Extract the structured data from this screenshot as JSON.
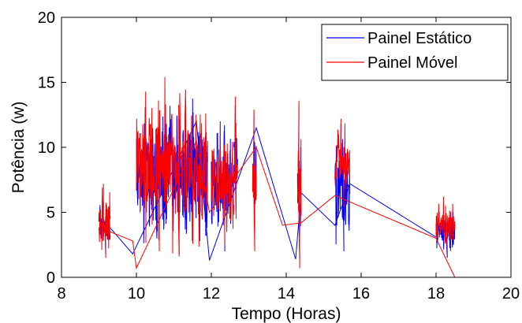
{
  "chart_data": {
    "type": "line",
    "title": "",
    "xlabel": "Tempo (Horas)",
    "ylabel": "Potência (w)",
    "xlim": [
      8,
      20
    ],
    "ylim": [
      0,
      20
    ],
    "xticks": [
      "8",
      "10",
      "12",
      "14",
      "16",
      "18",
      "20"
    ],
    "yticks": [
      "0",
      "5",
      "10",
      "15",
      "20"
    ],
    "grid": false,
    "legend_position": "top-right",
    "series": [
      {
        "name": "Painel Estático",
        "color": "#0000ff",
        "clusters": [
          {
            "x0": 9.0,
            "x1": 9.3,
            "min": 1.8,
            "max": 5.8
          },
          {
            "x0": 10.0,
            "x1": 11.9,
            "min": 1.8,
            "max": 14.5
          },
          {
            "x0": 12.0,
            "x1": 12.6,
            "min": 2.0,
            "max": 12.0
          },
          {
            "x0": 12.6,
            "x1": 12.7,
            "min": 5.0,
            "max": 13.2
          },
          {
            "x0": 13.1,
            "x1": 13.2,
            "min": 4.0,
            "max": 12.5
          },
          {
            "x0": 14.3,
            "x1": 14.4,
            "min": 1.5,
            "max": 13.2
          },
          {
            "x0": 15.3,
            "x1": 15.7,
            "min": 2.0,
            "max": 11.8
          },
          {
            "x0": 18.0,
            "x1": 18.5,
            "min": 1.5,
            "max": 5.8
          }
        ],
        "connectors": [
          [
            9.3,
            3.8
          ],
          [
            9.9,
            1.8
          ],
          [
            11.6,
            12.0
          ],
          [
            11.95,
            1.3
          ],
          [
            13.2,
            11.5
          ],
          [
            14.25,
            1.4
          ],
          [
            14.4,
            6.5
          ],
          [
            15.3,
            4.0
          ],
          [
            15.7,
            7.2
          ],
          [
            18.0,
            3.1
          ]
        ]
      },
      {
        "name": "Painel Móvel",
        "color": "#ff0000",
        "clusters": [
          {
            "x0": 9.0,
            "x1": 9.3,
            "min": 1.5,
            "max": 7.2
          },
          {
            "x0": 10.0,
            "x1": 11.9,
            "min": 1.6,
            "max": 15.4
          },
          {
            "x0": 12.0,
            "x1": 12.6,
            "min": 2.5,
            "max": 12.0
          },
          {
            "x0": 12.6,
            "x1": 12.7,
            "min": 4.5,
            "max": 13.9
          },
          {
            "x0": 13.1,
            "x1": 13.2,
            "min": 2.0,
            "max": 12.9
          },
          {
            "x0": 14.3,
            "x1": 14.4,
            "min": 0.7,
            "max": 13.6
          },
          {
            "x0": 15.3,
            "x1": 15.7,
            "min": 5.5,
            "max": 12.2
          },
          {
            "x0": 18.0,
            "x1": 18.5,
            "min": 1.8,
            "max": 6.2
          }
        ],
        "connectors": [
          [
            9.3,
            3.5
          ],
          [
            9.9,
            2.8
          ],
          [
            10.0,
            0.7
          ],
          [
            11.6,
            10.5
          ],
          [
            11.95,
            5.0
          ],
          [
            13.2,
            10.0
          ],
          [
            13.9,
            4.0
          ],
          [
            14.4,
            4.2
          ],
          [
            15.3,
            6.3
          ],
          [
            15.7,
            5.8
          ],
          [
            18.0,
            3.0
          ],
          [
            18.5,
            0.0
          ]
        ]
      }
    ]
  }
}
